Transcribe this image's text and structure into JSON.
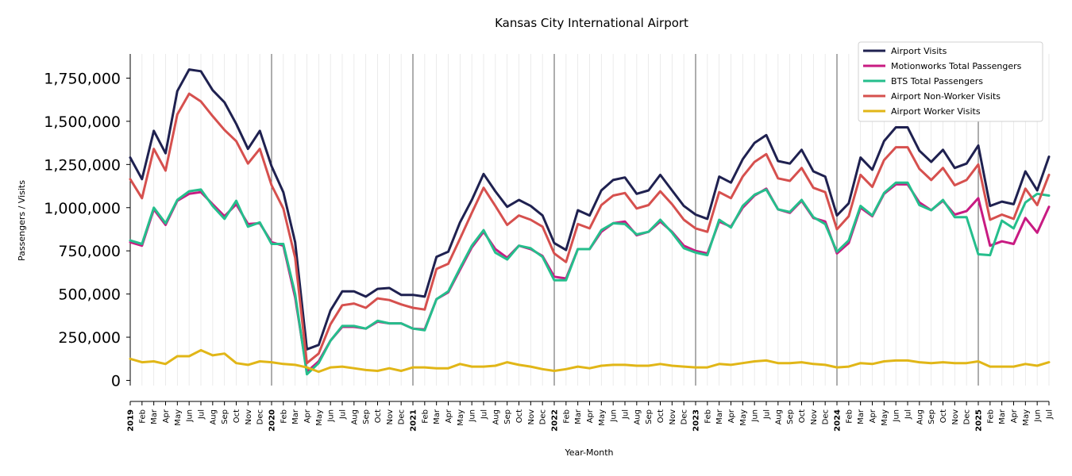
{
  "chart_data": {
    "type": "line",
    "title": "Kansas City International Airport",
    "xlabel": "Year-Month",
    "ylabel": "Passengers / Visits",
    "ylim": [
      -30000,
      1890000
    ],
    "yticks": [
      0,
      250000,
      500000,
      750000,
      1000000,
      1250000,
      1500000,
      1750000
    ],
    "ytick_labels": [
      "0",
      "250,000",
      "500,000",
      "750,000",
      "1,000,000",
      "1,250,000",
      "1,500,000",
      "1,750,000"
    ],
    "legend_position": "top-right",
    "x": [
      "2019",
      "Feb",
      "Mar",
      "Apr",
      "May",
      "Jun",
      "Jul",
      "Aug",
      "Sep",
      "Oct",
      "Nov",
      "Dec",
      "2020",
      "Feb",
      "Mar",
      "Apr",
      "May",
      "Jun",
      "Jul",
      "Aug",
      "Sep",
      "Oct",
      "Nov",
      "Dec",
      "2021",
      "Feb",
      "Mar",
      "Apr",
      "May",
      "Jun",
      "Jul",
      "Aug",
      "Sep",
      "Oct",
      "Nov",
      "Dec",
      "2022",
      "Feb",
      "Mar",
      "Apr",
      "May",
      "Jun",
      "Jul",
      "Aug",
      "Sep",
      "Oct",
      "Nov",
      "Dec",
      "2023",
      "Feb",
      "Mar",
      "Apr",
      "May",
      "Jun",
      "Jul",
      "Aug",
      "Sep",
      "Oct",
      "Nov",
      "Dec",
      "2024",
      "Feb",
      "Mar",
      "Apr",
      "May",
      "Jun",
      "Jul",
      "Aug",
      "Sep",
      "Oct",
      "Nov",
      "Dec",
      "2025",
      "Feb",
      "Mar",
      "Apr",
      "May",
      "Jun",
      "Jul"
    ],
    "year_ticks": [
      "2019",
      "2020",
      "2021",
      "2022",
      "2023",
      "2024",
      "2025"
    ],
    "series": [
      {
        "name": "Airport Visits",
        "color": "#1f2150",
        "values": [
          1290000,
          1165000,
          1445000,
          1315000,
          1675000,
          1800000,
          1790000,
          1680000,
          1610000,
          1485000,
          1340000,
          1445000,
          1240000,
          1090000,
          800000,
          180000,
          205000,
          405000,
          515000,
          515000,
          485000,
          530000,
          535000,
          495000,
          495000,
          485000,
          715000,
          745000,
          915000,
          1045000,
          1195000,
          1095000,
          1005000,
          1045000,
          1010000,
          955000,
          795000,
          755000,
          985000,
          955000,
          1100000,
          1160000,
          1175000,
          1080000,
          1100000,
          1190000,
          1100000,
          1010000,
          960000,
          935000,
          1180000,
          1145000,
          1280000,
          1375000,
          1420000,
          1270000,
          1255000,
          1335000,
          1210000,
          1180000,
          955000,
          1025000,
          1290000,
          1220000,
          1385000,
          1465000,
          1465000,
          1330000,
          1265000,
          1335000,
          1230000,
          1255000,
          1360000,
          1010000,
          1035000,
          1020000,
          1210000,
          1100000,
          1295000
        ]
      },
      {
        "name": "Motionworks Total Passengers",
        "color": "#c81b82",
        "values": [
          800000,
          780000,
          990000,
          900000,
          1040000,
          1080000,
          1090000,
          1020000,
          950000,
          1020000,
          905000,
          910000,
          800000,
          780000,
          480000,
          50000,
          110000,
          230000,
          310000,
          310000,
          300000,
          340000,
          330000,
          330000,
          300000,
          295000,
          470000,
          510000,
          640000,
          770000,
          860000,
          760000,
          710000,
          780000,
          760000,
          720000,
          600000,
          590000,
          760000,
          760000,
          860000,
          910000,
          920000,
          840000,
          860000,
          920000,
          860000,
          780000,
          750000,
          735000,
          920000,
          890000,
          1000000,
          1070000,
          1110000,
          990000,
          970000,
          1040000,
          940000,
          920000,
          735000,
          795000,
          1000000,
          950000,
          1080000,
          1135000,
          1135000,
          1030000,
          985000,
          1040000,
          960000,
          980000,
          1055000,
          780000,
          805000,
          790000,
          940000,
          855000,
          1005000
        ]
      },
      {
        "name": "BTS Total Passengers",
        "color": "#25be8c",
        "values": [
          810000,
          790000,
          1000000,
          910000,
          1045000,
          1095000,
          1105000,
          1010000,
          935000,
          1040000,
          890000,
          915000,
          790000,
          790000,
          500000,
          35000,
          100000,
          230000,
          315000,
          315000,
          300000,
          345000,
          330000,
          330000,
          300000,
          290000,
          470000,
          515000,
          650000,
          780000,
          870000,
          740000,
          700000,
          780000,
          765000,
          715000,
          580000,
          580000,
          760000,
          760000,
          870000,
          910000,
          905000,
          845000,
          860000,
          930000,
          855000,
          765000,
          740000,
          725000,
          930000,
          885000,
          1010000,
          1075000,
          1105000,
          990000,
          975000,
          1045000,
          945000,
          905000,
          745000,
          810000,
          1010000,
          955000,
          1085000,
          1145000,
          1145000,
          1015000,
          985000,
          1045000,
          945000,
          945000,
          730000,
          725000,
          925000,
          880000,
          1030000,
          1080000,
          1070000
        ]
      },
      {
        "name": "Airport Non-Worker Visits",
        "color": "#d6504e",
        "values": [
          1165000,
          1055000,
          1340000,
          1215000,
          1540000,
          1660000,
          1615000,
          1530000,
          1450000,
          1385000,
          1255000,
          1340000,
          1130000,
          995000,
          710000,
          100000,
          155000,
          325000,
          435000,
          445000,
          420000,
          475000,
          465000,
          440000,
          420000,
          410000,
          645000,
          675000,
          820000,
          970000,
          1115000,
          1010000,
          900000,
          955000,
          930000,
          890000,
          735000,
          685000,
          905000,
          880000,
          1015000,
          1070000,
          1085000,
          995000,
          1015000,
          1095000,
          1020000,
          930000,
          880000,
          860000,
          1090000,
          1055000,
          1180000,
          1265000,
          1310000,
          1170000,
          1155000,
          1230000,
          1115000,
          1090000,
          875000,
          950000,
          1190000,
          1120000,
          1275000,
          1350000,
          1350000,
          1225000,
          1160000,
          1230000,
          1130000,
          1160000,
          1250000,
          930000,
          960000,
          935000,
          1110000,
          1015000,
          1190000
        ]
      },
      {
        "name": "Airport Worker Visits",
        "color": "#e1b617",
        "values": [
          125000,
          105000,
          110000,
          95000,
          140000,
          140000,
          175000,
          145000,
          155000,
          100000,
          90000,
          110000,
          105000,
          95000,
          90000,
          75000,
          50000,
          75000,
          80000,
          70000,
          60000,
          55000,
          70000,
          55000,
          75000,
          75000,
          70000,
          70000,
          95000,
          80000,
          80000,
          85000,
          105000,
          90000,
          80000,
          65000,
          55000,
          65000,
          80000,
          70000,
          85000,
          90000,
          90000,
          85000,
          85000,
          95000,
          85000,
          80000,
          75000,
          75000,
          95000,
          90000,
          100000,
          110000,
          115000,
          100000,
          100000,
          105000,
          95000,
          90000,
          75000,
          80000,
          100000,
          95000,
          110000,
          115000,
          115000,
          105000,
          100000,
          105000,
          100000,
          100000,
          110000,
          80000,
          80000,
          80000,
          95000,
          85000,
          105000
        ]
      }
    ]
  }
}
